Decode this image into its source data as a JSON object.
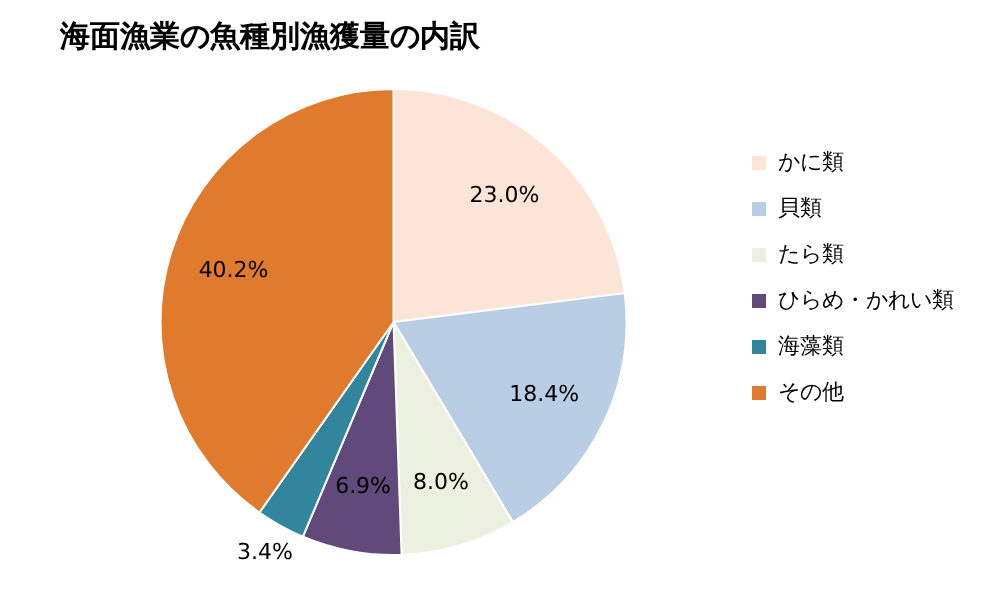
{
  "chart_data": {
    "type": "pie",
    "title": "海面漁業の魚種別漁獲量の内訳",
    "categories": [
      "かに類",
      "貝類",
      "たら類",
      "ひらめ・かれい類",
      "海藻類",
      "その他"
    ],
    "values": [
      23.0,
      18.4,
      8.0,
      6.9,
      3.4,
      40.2
    ],
    "colors": [
      "#fce4d6",
      "#b9cde5",
      "#ebf1de",
      "#604a7b",
      "#31859c",
      "#e07b2e"
    ],
    "value_labels": [
      "23.0%",
      "18.4%",
      "8.0%",
      "6.9%",
      "3.4%",
      "40.2%"
    ],
    "legend": "right"
  }
}
